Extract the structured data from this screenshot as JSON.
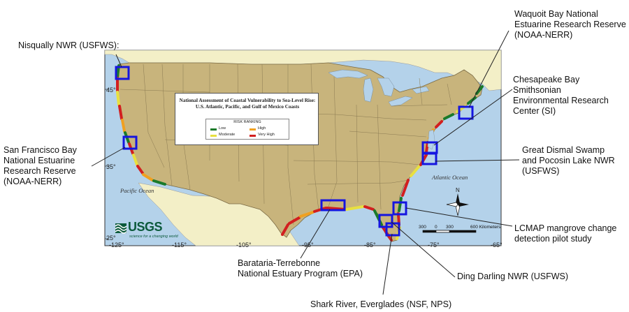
{
  "map": {
    "legend_title": "National Assessment of Coastal Vulnerability to Sea-Level Rise: U.S. Atlantic, Pacific, and Gulf of Mexico Coasts",
    "risk_heading": "RISK RANKING",
    "risk_levels": [
      {
        "label": "Low",
        "color": "#1b7a2a"
      },
      {
        "label": "High",
        "color": "#f0a020"
      },
      {
        "label": "Moderate",
        "color": "#e8e040"
      },
      {
        "label": "Very High",
        "color": "#d21f1f"
      }
    ],
    "oceans": {
      "pacific": "Pacific Ocean",
      "atlantic": "Atlantic Ocean"
    },
    "latitudes": [
      "45°",
      "35°",
      "25°"
    ],
    "longitudes": [
      "-125°",
      "-115°",
      "-105°",
      "-95°",
      "-85°",
      "-75°",
      "-65°"
    ],
    "north_label": "N",
    "scale": {
      "values": [
        "300",
        "0",
        "300",
        "600 Kilometers"
      ]
    },
    "logo": {
      "word": "USGS",
      "tagline": "science for a changing world"
    },
    "colors": {
      "land": "#c8b47c",
      "water": "#b4d2ea",
      "canada": "#f3efc7",
      "site_box": "#1515e0"
    }
  },
  "sites": [
    {
      "id": "nisqually",
      "label": "Nisqually NWR (USFWS):"
    },
    {
      "id": "sf-bay",
      "label": "San Francisco Bay\nNational Estuarine\nResearch Reserve\n(NOAA-NERR)"
    },
    {
      "id": "waquoit",
      "label": "Waquoit Bay National\nEstuarine Research Reserve\n(NOAA-NERR)"
    },
    {
      "id": "chesapeake",
      "label": "Chesapeake Bay\nSmithsonian\nEnvironmental Research\nCenter (SI)"
    },
    {
      "id": "dismal-swamp",
      "label": "Great Dismal Swamp\nand Pocosin Lake NWR\n(USFWS)"
    },
    {
      "id": "lcmap",
      "label": "LCMAP mangrove change\ndetection pilot study"
    },
    {
      "id": "ding-darling",
      "label": "Ding Darling NWR (USFWS)"
    },
    {
      "id": "barataria",
      "label": "Barataria-Terrebonne\nNational Estuary Program (EPA)"
    },
    {
      "id": "shark-river",
      "label": "Shark River, Everglades (NSF, NPS)"
    }
  ]
}
